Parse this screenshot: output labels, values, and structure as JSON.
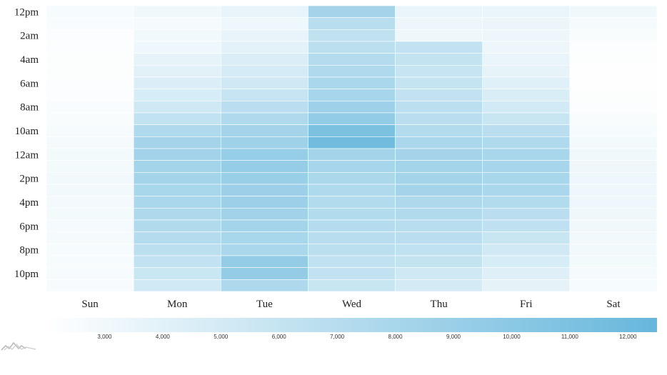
{
  "chart_data": {
    "type": "heatmap",
    "x_categories": [
      "Sun",
      "Mon",
      "Tue",
      "Wed",
      "Thu",
      "Fri",
      "Sat"
    ],
    "y_tick_labels": [
      "12pm",
      "2am",
      "4am",
      "6am",
      "8am",
      "10am",
      "12am",
      "2pm",
      "4pm",
      "6pm",
      "8pm",
      "10pm"
    ],
    "rows_per_day": 24,
    "values": [
      [
        2600,
        2400,
        2300,
        2250,
        2200,
        2200,
        2250,
        2300,
        2400,
        2500,
        2600,
        2700,
        2800,
        2800,
        2900,
        2900,
        2850,
        2800,
        2750,
        2700,
        2650,
        2650,
        2600,
        2550
      ],
      [
        3000,
        2700,
        2900,
        3200,
        3700,
        4000,
        4500,
        4800,
        5400,
        6300,
        7500,
        8200,
        8400,
        8300,
        8300,
        8000,
        7900,
        7600,
        7400,
        7200,
        6600,
        6200,
        5700,
        5200
      ],
      [
        3600,
        3200,
        3600,
        3900,
        4500,
        4900,
        5300,
        5900,
        6800,
        7500,
        8200,
        8600,
        9200,
        9300,
        9000,
        8800,
        8800,
        8500,
        8300,
        8000,
        7800,
        9400,
        9400,
        7600
      ],
      [
        8200,
        7000,
        6400,
        6700,
        7100,
        7500,
        7800,
        8100,
        8700,
        9500,
        11000,
        11800,
        8300,
        8100,
        7700,
        7500,
        7300,
        7300,
        7100,
        6900,
        6600,
        6400,
        6200,
        5800
      ],
      [
        3500,
        3300,
        3100,
        6200,
        6100,
        5900,
        6000,
        6200,
        6600,
        6800,
        7300,
        7800,
        8200,
        8300,
        8300,
        8200,
        7600,
        7400,
        7000,
        6800,
        6400,
        6100,
        5400,
        5000
      ],
      [
        3500,
        3400,
        3300,
        3300,
        3500,
        3700,
        4200,
        4600,
        5100,
        5800,
        6800,
        7500,
        8000,
        8100,
        8000,
        7800,
        7300,
        6800,
        6500,
        5800,
        5200,
        4800,
        4300,
        3800
      ],
      [
        3000,
        2700,
        2500,
        2300,
        2200,
        2100,
        2100,
        2200,
        2300,
        2500,
        2600,
        2800,
        3000,
        3100,
        3200,
        3200,
        3200,
        3100,
        3000,
        2900,
        2900,
        2800,
        2700,
        2600
      ]
    ],
    "legend": {
      "min": 2000,
      "max": 12500,
      "ticks": [
        "3,000",
        "4,000",
        "5,000",
        "6,000",
        "7,000",
        "8,000",
        "9,000",
        "10,000",
        "11,000",
        "12,000"
      ],
      "tick_values": [
        3000,
        4000,
        5000,
        6000,
        7000,
        8000,
        9000,
        10000,
        11000,
        12000
      ],
      "placement": "bottom"
    },
    "color_low": "#ffffff",
    "color_high": "#67b7dc",
    "grid": false
  }
}
